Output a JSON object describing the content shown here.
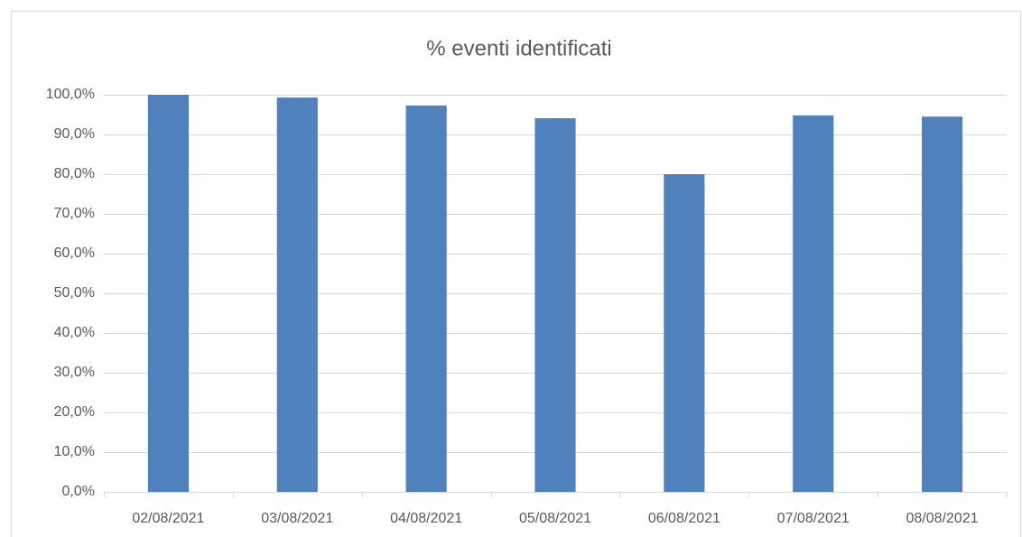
{
  "chart_data": {
    "type": "bar",
    "title": "% eventi identificati",
    "categories": [
      "02/08/2021",
      "03/08/2021",
      "04/08/2021",
      "05/08/2021",
      "06/08/2021",
      "07/08/2021",
      "08/08/2021"
    ],
    "values": [
      100,
      99.3,
      97.3,
      94.1,
      80,
      94.8,
      94.5
    ],
    "color": "#4f81bd",
    "ylim": [
      0,
      100
    ],
    "yticks": [
      {
        "value": 0,
        "label": "0,0%"
      },
      {
        "value": 10,
        "label": "10,0%"
      },
      {
        "value": 20,
        "label": "20,0%"
      },
      {
        "value": 30,
        "label": "30,0%"
      },
      {
        "value": 40,
        "label": "40,0%"
      },
      {
        "value": 50,
        "label": "50,0%"
      },
      {
        "value": 60,
        "label": "60,0%"
      },
      {
        "value": 70,
        "label": "70,0%"
      },
      {
        "value": 80,
        "label": "80,0%"
      },
      {
        "value": 90,
        "label": "90,0%"
      },
      {
        "value": 100,
        "label": "100,0%"
      }
    ],
    "grid": true
  }
}
